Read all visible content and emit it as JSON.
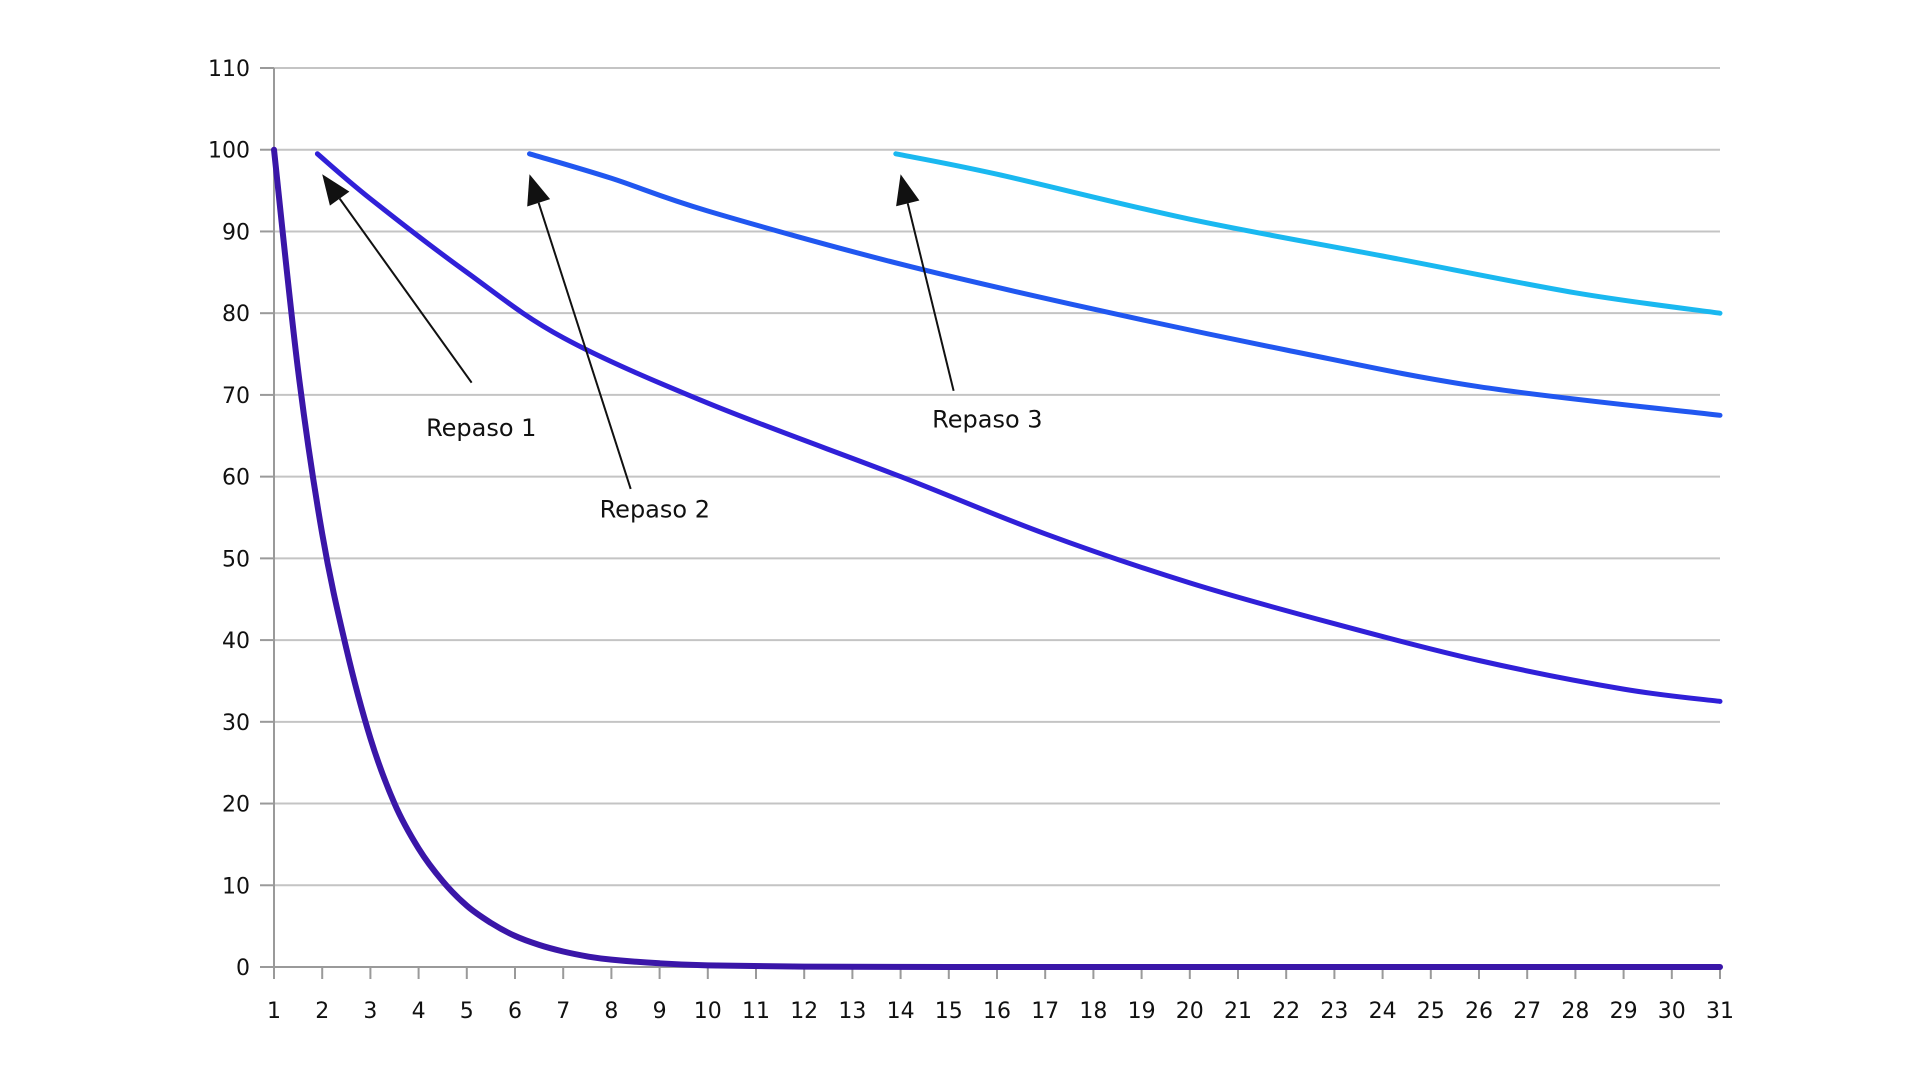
{
  "chart_data": {
    "type": "line",
    "title": "",
    "xlabel": "",
    "ylabel": "",
    "xlim": [
      1,
      31
    ],
    "ylim": [
      0,
      110
    ],
    "x_ticks": [
      1,
      2,
      3,
      4,
      5,
      6,
      7,
      8,
      9,
      10,
      11,
      12,
      13,
      14,
      15,
      16,
      17,
      18,
      19,
      20,
      21,
      22,
      23,
      24,
      25,
      26,
      27,
      28,
      29,
      30,
      31
    ],
    "y_ticks": [
      0,
      10,
      20,
      30,
      40,
      50,
      60,
      70,
      80,
      90,
      100,
      110
    ],
    "grid": "horizontal",
    "legend": "none",
    "series": [
      {
        "color": "#3a16a8",
        "x": [
          1,
          1.5,
          2,
          2.5,
          3,
          3.5,
          4,
          4.5,
          5,
          5.5,
          6,
          6.5,
          7,
          7.5,
          8,
          9,
          10,
          12,
          15,
          20,
          25,
          31
        ],
        "y": [
          100,
          73,
          53,
          39,
          28,
          20,
          14.5,
          10.5,
          7.5,
          5.4,
          3.8,
          2.7,
          1.9,
          1.3,
          0.9,
          0.45,
          0.2,
          0.05,
          0,
          0,
          0,
          0
        ]
      },
      {
        "color": "#3020d8",
        "x": [
          1.9,
          3,
          5,
          7,
          10,
          14,
          17,
          20,
          23,
          26,
          29,
          31
        ],
        "y": [
          99.5,
          94,
          85,
          77,
          69,
          60,
          53,
          47,
          42,
          37.5,
          34,
          32.5
        ]
      },
      {
        "color": "#2157f0",
        "x": [
          6.3,
          8,
          10,
          14,
          18,
          22,
          26,
          31
        ],
        "y": [
          99.5,
          96.5,
          92.5,
          86,
          80.5,
          75.5,
          71,
          67.5
        ]
      },
      {
        "color": "#1ab8f0",
        "x": [
          13.9,
          16,
          20,
          24,
          28,
          31
        ],
        "y": [
          99.5,
          97,
          91.5,
          87,
          82.5,
          80
        ]
      }
    ],
    "annotations": [
      {
        "text": "Repaso 1",
        "target": [
          2,
          97
        ],
        "from": [
          5.1,
          71.5
        ],
        "label_at": [
          5.3,
          65
        ]
      },
      {
        "text": "Repaso 2",
        "target": [
          6.3,
          97
        ],
        "from": [
          8.4,
          58.5
        ],
        "label_at": [
          8.9,
          55
        ]
      },
      {
        "text": "Repaso 3",
        "target": [
          14,
          97
        ],
        "from": [
          15.1,
          70.5
        ],
        "label_at": [
          15.8,
          66
        ]
      }
    ]
  }
}
